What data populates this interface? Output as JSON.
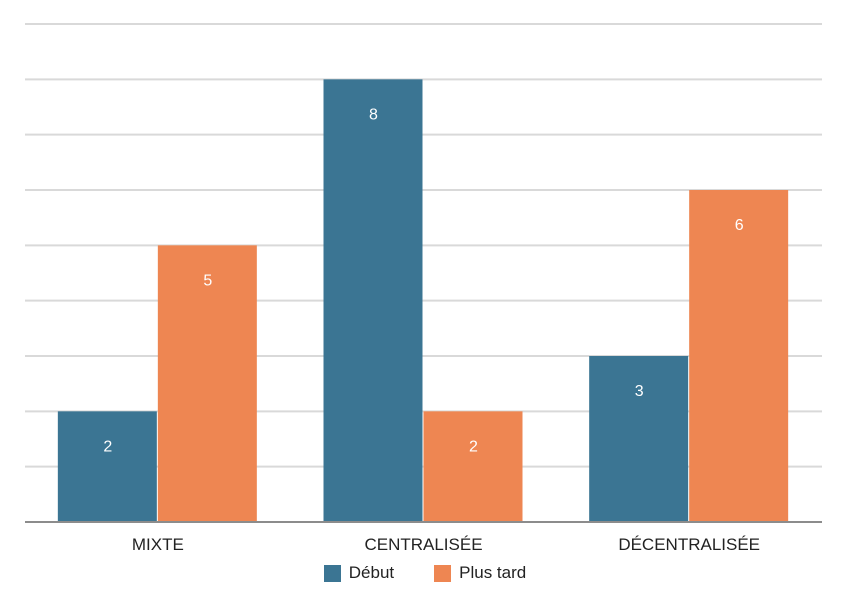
{
  "chart_data": {
    "type": "bar",
    "categories": [
      "MIXTE",
      "CENTRALISÉE",
      "DÉCENTRALISÉE"
    ],
    "series": [
      {
        "name": "Début",
        "values": [
          2,
          8,
          3
        ],
        "color": "#3b7593"
      },
      {
        "name": "Plus tard",
        "values": [
          5,
          2,
          6
        ],
        "color": "#ee8652"
      }
    ],
    "ylim": [
      0,
      9
    ],
    "grid": true,
    "legend_position": "bottom",
    "data_labels": true
  }
}
